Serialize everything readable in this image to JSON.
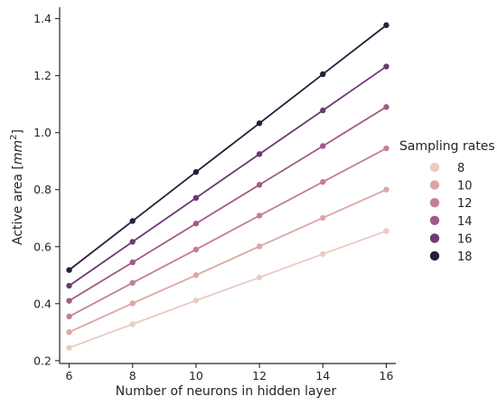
{
  "chart_data": {
    "type": "line",
    "xlabel": "Number of neurons in hidden layer",
    "ylabel_prefix": "Active area [",
    "ylabel_unit_base": "mm",
    "ylabel_unit_exp": "2",
    "ylabel_suffix": "]",
    "x": [
      6,
      8,
      10,
      12,
      14,
      16
    ],
    "xticks": [
      "6",
      "8",
      "10",
      "12",
      "14",
      "16"
    ],
    "xlim": [
      5.7,
      16.3
    ],
    "ylim": [
      0.19,
      1.44
    ],
    "yticks": [
      0.2,
      0.4,
      0.6,
      0.8,
      1.0,
      1.2,
      1.4
    ],
    "ytick_labels": [
      "0.2",
      "0.4",
      "0.6",
      "0.8",
      "1.0",
      "1.2",
      "1.4"
    ],
    "grid": false,
    "legend_position": "right",
    "legend_title": "Sampling rates",
    "series": [
      {
        "name": "8",
        "color": "#ebcbc2",
        "values": [
          0.245,
          0.328,
          0.411,
          0.492,
          0.574,
          0.655
        ]
      },
      {
        "name": "10",
        "color": "#dda6a4",
        "values": [
          0.3,
          0.401,
          0.5,
          0.601,
          0.701,
          0.8
        ]
      },
      {
        "name": "12",
        "color": "#c47f93",
        "values": [
          0.355,
          0.473,
          0.59,
          0.709,
          0.827,
          0.945
        ]
      },
      {
        "name": "14",
        "color": "#a25a87",
        "values": [
          0.41,
          0.545,
          0.681,
          0.817,
          0.953,
          1.09
        ]
      },
      {
        "name": "16",
        "color": "#6c3a74",
        "values": [
          0.463,
          0.617,
          0.771,
          0.925,
          1.078,
          1.232
        ]
      },
      {
        "name": "18",
        "color": "#2b1d3c",
        "values": [
          0.518,
          0.69,
          0.862,
          1.033,
          1.205,
          1.377
        ]
      }
    ]
  }
}
